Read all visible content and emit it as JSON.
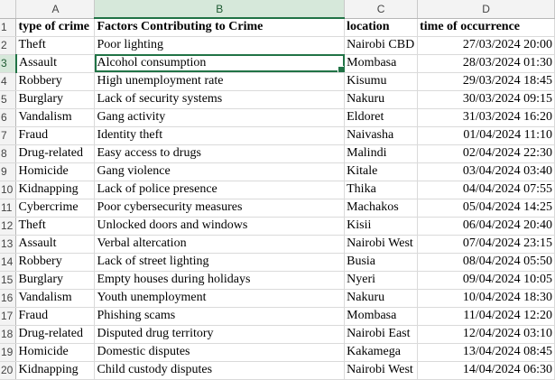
{
  "columns": [
    "A",
    "B",
    "C",
    "D"
  ],
  "active_cell": {
    "row": 3,
    "col": "B"
  },
  "rows": [
    {
      "num": "1",
      "a": "type of crime",
      "b": "Factors Contributing to Crime",
      "c": "location",
      "d": "time of occurrence"
    },
    {
      "num": "2",
      "a": "Theft",
      "b": "Poor lighting",
      "c": "Nairobi CBD",
      "d": "27/03/2024 20:00"
    },
    {
      "num": "3",
      "a": "Assault",
      "b": "Alcohol consumption",
      "c": "Mombasa",
      "d": "28/03/2024 01:30"
    },
    {
      "num": "4",
      "a": "Robbery",
      "b": "High unemployment rate",
      "c": "Kisumu",
      "d": "29/03/2024 18:45"
    },
    {
      "num": "5",
      "a": "Burglary",
      "b": "Lack of security systems",
      "c": "Nakuru",
      "d": "30/03/2024 09:15"
    },
    {
      "num": "6",
      "a": "Vandalism",
      "b": "Gang activity",
      "c": "Eldoret",
      "d": "31/03/2024 16:20"
    },
    {
      "num": "7",
      "a": "Fraud",
      "b": "Identity theft",
      "c": "Naivasha",
      "d": "01/04/2024 11:10"
    },
    {
      "num": "8",
      "a": "Drug-related",
      "b": "Easy access to drugs",
      "c": "Malindi",
      "d": "02/04/2024 22:30"
    },
    {
      "num": "9",
      "a": "Homicide",
      "b": "Gang violence",
      "c": "Kitale",
      "d": "03/04/2024 03:40"
    },
    {
      "num": "10",
      "a": "Kidnapping",
      "b": "Lack of police presence",
      "c": "Thika",
      "d": "04/04/2024 07:55"
    },
    {
      "num": "11",
      "a": "Cybercrime",
      "b": "Poor cybersecurity measures",
      "c": "Machakos",
      "d": "05/04/2024 14:25"
    },
    {
      "num": "12",
      "a": "Theft",
      "b": "Unlocked doors and windows",
      "c": "Kisii",
      "d": "06/04/2024 20:40"
    },
    {
      "num": "13",
      "a": "Assault",
      "b": "Verbal altercation",
      "c": "Nairobi West",
      "d": "07/04/2024 23:15"
    },
    {
      "num": "14",
      "a": "Robbery",
      "b": "Lack of street lighting",
      "c": "Busia",
      "d": "08/04/2024 05:50"
    },
    {
      "num": "15",
      "a": "Burglary",
      "b": "Empty houses during holidays",
      "c": "Nyeri",
      "d": "09/04/2024 10:05"
    },
    {
      "num": "16",
      "a": "Vandalism",
      "b": "Youth unemployment",
      "c": "Nakuru",
      "d": "10/04/2024 18:30"
    },
    {
      "num": "17",
      "a": "Fraud",
      "b": "Phishing scams",
      "c": "Mombasa",
      "d": "11/04/2024 12:20"
    },
    {
      "num": "18",
      "a": "Drug-related",
      "b": "Disputed drug territory",
      "c": "Nairobi East",
      "d": "12/04/2024 03:10"
    },
    {
      "num": "19",
      "a": "Homicide",
      "b": "Domestic disputes",
      "c": "Kakamega",
      "d": "13/04/2024 08:45"
    },
    {
      "num": "20",
      "a": "Kidnapping",
      "b": "Child custody disputes",
      "c": "Nairobi West",
      "d": "14/04/2024 06:30"
    }
  ]
}
